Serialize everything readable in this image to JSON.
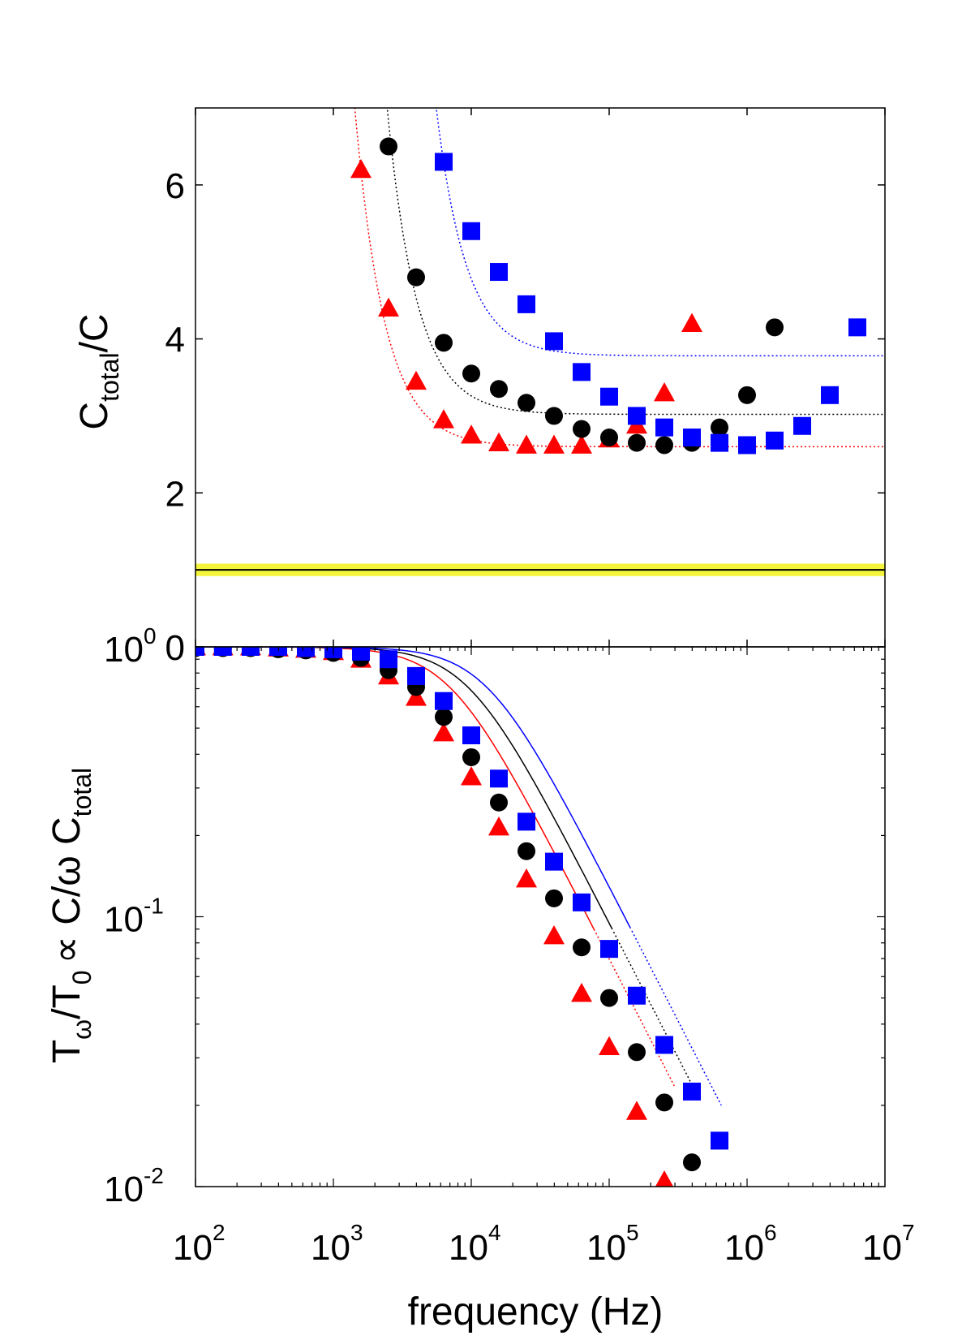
{
  "figure": {
    "xlabel": "frequency (Hz)"
  },
  "chart_data": [
    {
      "type": "scatter",
      "panel": "top",
      "xscale": "log",
      "xlim": [
        100,
        10000000
      ],
      "ylim": [
        0,
        7
      ],
      "yticks": [
        0,
        2,
        4,
        6
      ],
      "ylabel": {
        "main": "C",
        "sub": "total",
        "suffix": "/C"
      },
      "reference_line": {
        "y": 1.0,
        "band": [
          0.92,
          1.08
        ],
        "band_color": "#f4f43a",
        "line_color": "#000000"
      },
      "series": [
        {
          "name": "triangles",
          "marker": "triangle",
          "color": "#ff0000",
          "x": [
            1585,
            2512,
            3981,
            6310,
            10000,
            15849,
            25119,
            39811,
            63096,
            100000,
            158489,
            251189,
            398107
          ],
          "y": [
            6.2,
            4.4,
            3.45,
            2.95,
            2.75,
            2.65,
            2.62,
            2.62,
            2.62,
            2.7,
            2.88,
            3.3,
            4.2
          ]
        },
        {
          "name": "circles",
          "marker": "circle",
          "color": "#000000",
          "x": [
            2512,
            3981,
            6310,
            10000,
            15849,
            25119,
            39811,
            63096,
            100000,
            158489,
            251189,
            398107,
            630957,
            1000000,
            1584893
          ],
          "y": [
            6.5,
            4.8,
            3.95,
            3.55,
            3.35,
            3.17,
            3.0,
            2.83,
            2.72,
            2.65,
            2.62,
            2.65,
            2.85,
            3.27,
            4.15
          ]
        },
        {
          "name": "squares",
          "marker": "square",
          "color": "#0000ff",
          "x": [
            6310,
            10000,
            15849,
            25119,
            39811,
            63096,
            100000,
            158489,
            251189,
            398107,
            630957,
            1000000,
            1584893,
            2511886,
            3981072,
            6309573
          ],
          "y": [
            6.3,
            5.4,
            4.87,
            4.45,
            3.97,
            3.57,
            3.25,
            3.0,
            2.85,
            2.72,
            2.65,
            2.62,
            2.68,
            2.87,
            3.27,
            4.15
          ]
        }
      ],
      "fits": [
        {
          "name": "red-fit",
          "color": "#ff0000",
          "style": "dotted",
          "a": 2.6,
          "b": 9000000,
          "p": 2
        },
        {
          "name": "black-fit",
          "color": "#000000",
          "style": "dotted",
          "a": 3.02,
          "b": 24000000,
          "p": 2
        },
        {
          "name": "blue-fit",
          "color": "#0000ff",
          "style": "dotted",
          "a": 3.78,
          "b": 100000000,
          "p": 2
        }
      ]
    },
    {
      "type": "scatter",
      "panel": "bottom",
      "xscale": "log",
      "yscale": "log",
      "xlim": [
        100,
        10000000
      ],
      "ylim": [
        0.01,
        1.0
      ],
      "xticks": [
        {
          "value": 100,
          "base": "10",
          "exp": "2"
        },
        {
          "value": 1000,
          "base": "10",
          "exp": "3"
        },
        {
          "value": 10000,
          "base": "10",
          "exp": "4"
        },
        {
          "value": 100000,
          "base": "10",
          "exp": "5"
        },
        {
          "value": 1000000,
          "base": "10",
          "exp": "6"
        },
        {
          "value": 10000000,
          "base": "10",
          "exp": "7"
        }
      ],
      "yticks": [
        {
          "value": 1.0,
          "base": "10",
          "exp": "0"
        },
        {
          "value": 0.1,
          "base": "10",
          "exp": "-1"
        },
        {
          "value": 0.01,
          "base": "10",
          "exp": "-2"
        }
      ],
      "ylabel": {
        "t": "T",
        "omega": "ω",
        "slash_t": "/T",
        "zero": "0",
        "prop": "∝ C/ω C",
        "sub": "total"
      },
      "series": [
        {
          "name": "triangles",
          "marker": "triangle",
          "color": "#ff0000",
          "x": [
            100,
            158,
            251,
            398,
            631,
            1000,
            1585,
            2512,
            3981,
            6310,
            10000,
            15849,
            25119,
            39811,
            63096,
            100000,
            158489,
            251189
          ],
          "y": [
            1.0,
            1.0,
            1.0,
            0.99,
            0.98,
            0.96,
            0.9,
            0.78,
            0.65,
            0.48,
            0.33,
            0.215,
            0.138,
            0.085,
            0.052,
            0.033,
            0.019,
            0.0105
          ]
        },
        {
          "name": "circles",
          "marker": "circle",
          "color": "#000000",
          "x": [
            100,
            158,
            251,
            398,
            631,
            1000,
            1585,
            2512,
            3981,
            6310,
            10000,
            15849,
            25119,
            39811,
            63096,
            100000,
            158489,
            251189,
            398107
          ],
          "y": [
            0.99,
            0.99,
            0.99,
            0.98,
            0.97,
            0.95,
            0.91,
            0.82,
            0.71,
            0.55,
            0.39,
            0.265,
            0.175,
            0.117,
            0.077,
            0.05,
            0.0315,
            0.0205,
            0.0123
          ]
        },
        {
          "name": "squares",
          "marker": "square",
          "color": "#0000ff",
          "x": [
            100,
            158,
            251,
            398,
            631,
            1000,
            1585,
            2512,
            3981,
            6310,
            10000,
            15849,
            25119,
            39811,
            63096,
            100000,
            158489,
            251189,
            398107,
            630957
          ],
          "y": [
            1.0,
            1.0,
            1.0,
            1.0,
            0.99,
            0.98,
            0.96,
            0.9,
            0.78,
            0.63,
            0.47,
            0.325,
            0.225,
            0.16,
            0.113,
            0.076,
            0.051,
            0.0335,
            0.0225,
            0.0148
          ]
        }
      ],
      "fits": [
        {
          "name": "red-fit",
          "color": "#ff0000",
          "fc": 7000,
          "xmax": 300000
        },
        {
          "name": "black-fit",
          "color": "#000000",
          "fc": 9500,
          "xmax": 450000
        },
        {
          "name": "blue-fit",
          "color": "#0000ff",
          "fc": 13000,
          "xmax": 650000
        }
      ]
    }
  ]
}
